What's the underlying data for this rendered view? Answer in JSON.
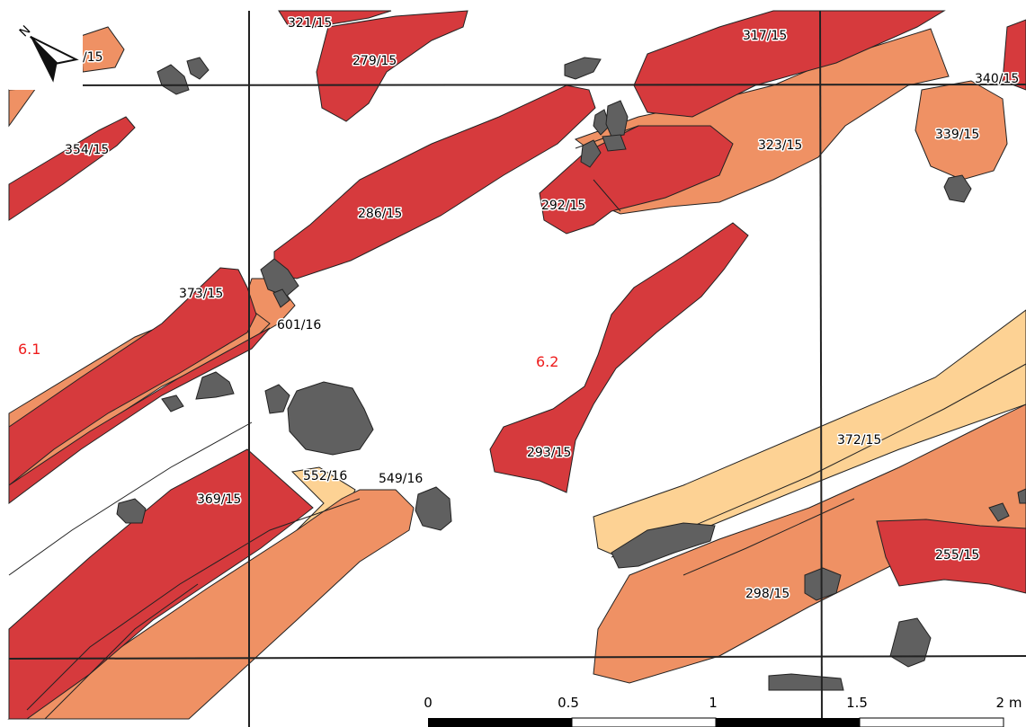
{
  "map": {
    "north_arrow": {
      "label": "N",
      "icon": "north-arrow-icon"
    },
    "colors": {
      "dark_red": "#d63a3d",
      "orange": "#ef9164",
      "light_orange": "#fdd294",
      "stone": "#606060",
      "grid": "#222222",
      "area_label": "#ee1c1c"
    },
    "area_labels": [
      "6.1",
      "6.2"
    ],
    "feature_labels": [
      "321/15",
      "279/15",
      "317/15",
      "340/15",
      "339/15",
      "323/15",
      "354/15",
      "286/15",
      "292/15",
      "373/15",
      "601/16",
      "293/15",
      "372/15",
      "552/16",
      "549/16",
      "369/15",
      "255/15",
      "298/15",
      "/15"
    ],
    "scale_bar": {
      "labels": [
        "0",
        "0.5",
        "1",
        "1.5",
        "2 m"
      ]
    }
  }
}
